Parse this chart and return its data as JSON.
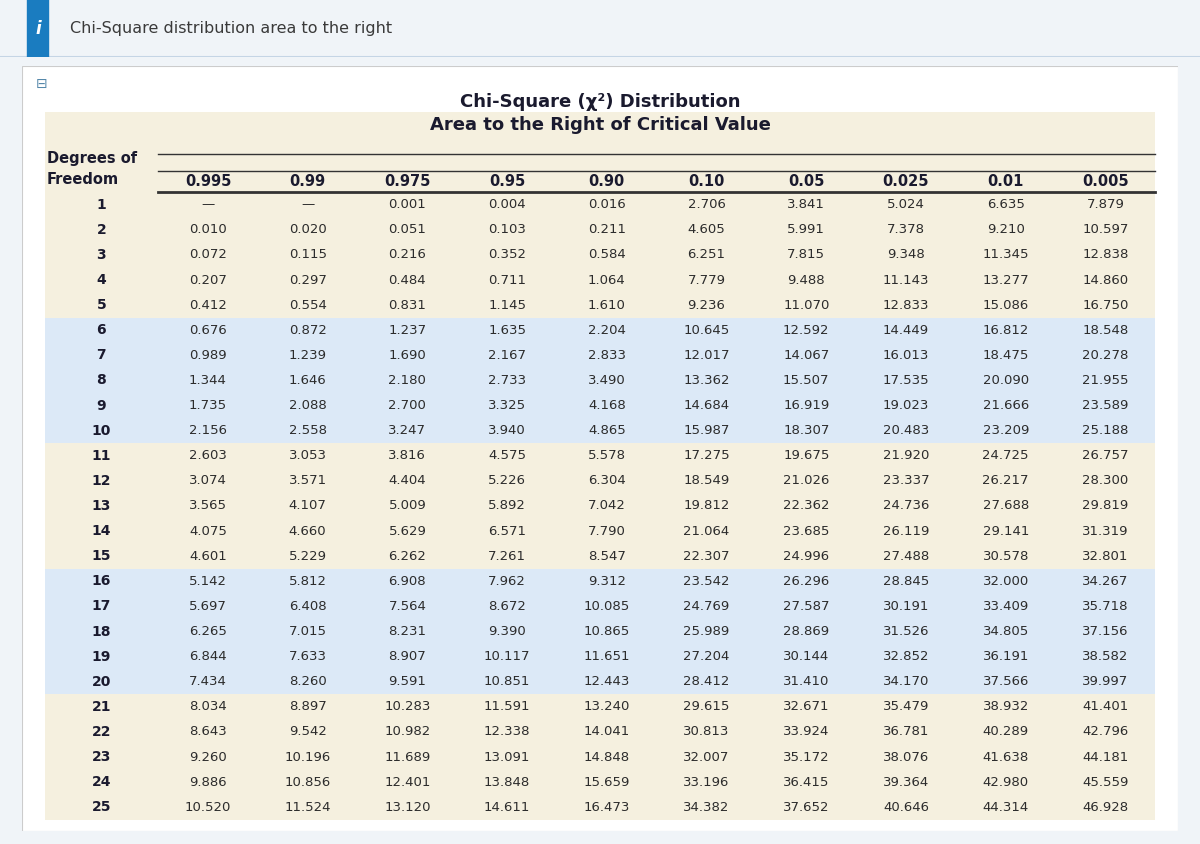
{
  "title_line1": "Chi-Square (χ²) Distribution",
  "title_line2": "Area to the Right of Critical Value",
  "col_headers": [
    "0.995",
    "0.99",
    "0.975",
    "0.95",
    "0.90",
    "0.10",
    "0.05",
    "0.025",
    "0.01",
    "0.005"
  ],
  "df": [
    1,
    2,
    3,
    4,
    5,
    6,
    7,
    8,
    9,
    10,
    11,
    12,
    13,
    14,
    15,
    16,
    17,
    18,
    19,
    20,
    21,
    22,
    23,
    24,
    25
  ],
  "table_data": [
    [
      "—",
      "—",
      "0.001",
      "0.004",
      "0.016",
      "2.706",
      "3.841",
      "5.024",
      "6.635",
      "7.879"
    ],
    [
      "0.010",
      "0.020",
      "0.051",
      "0.103",
      "0.211",
      "4.605",
      "5.991",
      "7.378",
      "9.210",
      "10.597"
    ],
    [
      "0.072",
      "0.115",
      "0.216",
      "0.352",
      "0.584",
      "6.251",
      "7.815",
      "9.348",
      "11.345",
      "12.838"
    ],
    [
      "0.207",
      "0.297",
      "0.484",
      "0.711",
      "1.064",
      "7.779",
      "9.488",
      "11.143",
      "13.277",
      "14.860"
    ],
    [
      "0.412",
      "0.554",
      "0.831",
      "1.145",
      "1.610",
      "9.236",
      "11.070",
      "12.833",
      "15.086",
      "16.750"
    ],
    [
      "0.676",
      "0.872",
      "1.237",
      "1.635",
      "2.204",
      "10.645",
      "12.592",
      "14.449",
      "16.812",
      "18.548"
    ],
    [
      "0.989",
      "1.239",
      "1.690",
      "2.167",
      "2.833",
      "12.017",
      "14.067",
      "16.013",
      "18.475",
      "20.278"
    ],
    [
      "1.344",
      "1.646",
      "2.180",
      "2.733",
      "3.490",
      "13.362",
      "15.507",
      "17.535",
      "20.090",
      "21.955"
    ],
    [
      "1.735",
      "2.088",
      "2.700",
      "3.325",
      "4.168",
      "14.684",
      "16.919",
      "19.023",
      "21.666",
      "23.589"
    ],
    [
      "2.156",
      "2.558",
      "3.247",
      "3.940",
      "4.865",
      "15.987",
      "18.307",
      "20.483",
      "23.209",
      "25.188"
    ],
    [
      "2.603",
      "3.053",
      "3.816",
      "4.575",
      "5.578",
      "17.275",
      "19.675",
      "21.920",
      "24.725",
      "26.757"
    ],
    [
      "3.074",
      "3.571",
      "4.404",
      "5.226",
      "6.304",
      "18.549",
      "21.026",
      "23.337",
      "26.217",
      "28.300"
    ],
    [
      "3.565",
      "4.107",
      "5.009",
      "5.892",
      "7.042",
      "19.812",
      "22.362",
      "24.736",
      "27.688",
      "29.819"
    ],
    [
      "4.075",
      "4.660",
      "5.629",
      "6.571",
      "7.790",
      "21.064",
      "23.685",
      "26.119",
      "29.141",
      "31.319"
    ],
    [
      "4.601",
      "5.229",
      "6.262",
      "7.261",
      "8.547",
      "22.307",
      "24.996",
      "27.488",
      "30.578",
      "32.801"
    ],
    [
      "5.142",
      "5.812",
      "6.908",
      "7.962",
      "9.312",
      "23.542",
      "26.296",
      "28.845",
      "32.000",
      "34.267"
    ],
    [
      "5.697",
      "6.408",
      "7.564",
      "8.672",
      "10.085",
      "24.769",
      "27.587",
      "30.191",
      "33.409",
      "35.718"
    ],
    [
      "6.265",
      "7.015",
      "8.231",
      "9.390",
      "10.865",
      "25.989",
      "28.869",
      "31.526",
      "34.805",
      "37.156"
    ],
    [
      "6.844",
      "7.633",
      "8.907",
      "10.117",
      "11.651",
      "27.204",
      "30.144",
      "32.852",
      "36.191",
      "38.582"
    ],
    [
      "7.434",
      "8.260",
      "9.591",
      "10.851",
      "12.443",
      "28.412",
      "31.410",
      "34.170",
      "37.566",
      "39.997"
    ],
    [
      "8.034",
      "8.897",
      "10.283",
      "11.591",
      "13.240",
      "29.615",
      "32.671",
      "35.479",
      "38.932",
      "41.401"
    ],
    [
      "8.643",
      "9.542",
      "10.982",
      "12.338",
      "14.041",
      "30.813",
      "33.924",
      "36.781",
      "40.289",
      "42.796"
    ],
    [
      "9.260",
      "10.196",
      "11.689",
      "13.091",
      "14.848",
      "32.007",
      "35.172",
      "38.076",
      "41.638",
      "44.181"
    ],
    [
      "9.886",
      "10.856",
      "12.401",
      "13.848",
      "15.659",
      "33.196",
      "36.415",
      "39.364",
      "42.980",
      "45.559"
    ],
    [
      "10.520",
      "11.524",
      "13.120",
      "14.611",
      "16.473",
      "34.382",
      "37.652",
      "40.646",
      "44.314",
      "46.928"
    ]
  ],
  "band_colors": [
    "#f5f0df",
    "#dce9f7",
    "#f5f0df",
    "#dce9f7",
    "#f5f0df"
  ],
  "bg_color": "#f5f0df",
  "outer_bg": "#f0f4f8",
  "top_bar_color": "#e4edf5",
  "top_bar_border": "#c5d5e5",
  "info_icon_color": "#1a7cc0",
  "text_color": "#2c2c2c",
  "title_color": "#1a1a2e",
  "df_color": "#1a1a2e",
  "header_color": "#1a1a2e",
  "table_border_color": "#c8c0a8",
  "line_color": "#333333"
}
